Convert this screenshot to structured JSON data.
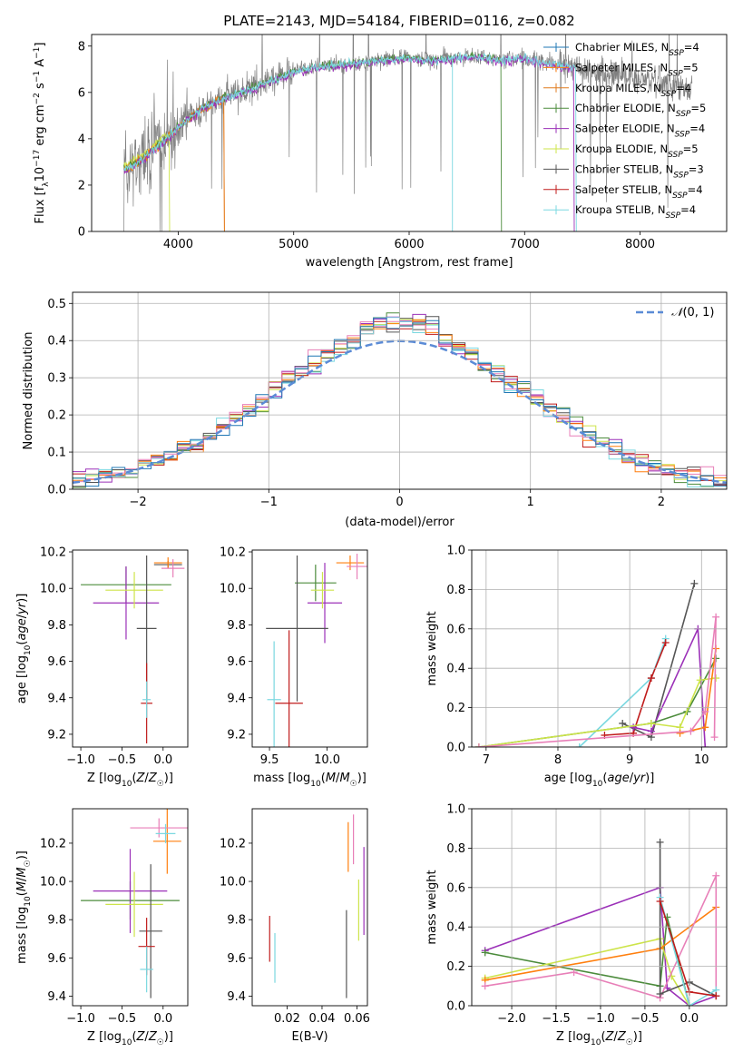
{
  "figure_title": "PLATE=2143, MJD=54184, FIBERID=0116, z=0.082",
  "colors": {
    "Chabrier MILES": "#1f77b4",
    "Salpeter MILES": "#ff7f0e",
    "Kroupa MILES": "#e07b1f",
    "Chabrier ELODIE": "#4b8b3b",
    "Salpeter ELODIE": "#9b30b8",
    "Kroupa ELODIE": "#cde44a",
    "Chabrier STELIB": "#555555",
    "Salpeter STELIB": "#c01b1b",
    "Kroupa STELIB": "#7ad8e0",
    "data": "#808080",
    "normal": "#5b8bd6",
    "pink": "#e87fb8"
  },
  "chart_data": [
    {
      "id": "spectrum",
      "type": "line",
      "title": "PLATE=2143, MJD=54184, FIBERID=0116, z=0.082",
      "xlabel": "wavelength [Angstrom, rest frame]",
      "ylabel": "Flux [f_λ 10^-17 erg cm^-2 s^-1 A^-1]",
      "xlim": [
        3250,
        8750
      ],
      "ylim": [
        0,
        8.5
      ],
      "xticks": [
        4000,
        5000,
        6000,
        7000,
        8000
      ],
      "yticks": [
        0,
        2,
        4,
        6,
        8
      ],
      "grid": false,
      "legend_position": "right",
      "legend": [
        "Chabrier MILES, N_SSP=4",
        "Salpeter MILES, N_SSP=5",
        "Kroupa MILES, N_SSP=4",
        "Chabrier ELODIE, N_SSP=5",
        "Salpeter ELODIE, N_SSP=4",
        "Kroupa ELODIE, N_SSP=5",
        "Chabrier STELIB, N_SSP=3",
        "Salpeter STELIB, N_SSP=4",
        "Kroupa STELIB, N_SSP=4"
      ],
      "continuum": {
        "x": [
          3550,
          3700,
          3850,
          4000,
          4200,
          4400,
          4600,
          4800,
          5000,
          5200,
          5400,
          5600,
          5800,
          6000,
          6200,
          6400,
          6600,
          6800,
          7000,
          7200,
          7400,
          7500
        ],
        "y": [
          2.7,
          3.2,
          3.8,
          4.5,
          5.3,
          5.8,
          6.1,
          6.5,
          6.9,
          7.1,
          7.2,
          7.3,
          7.45,
          7.5,
          7.4,
          7.5,
          7.55,
          7.4,
          7.5,
          7.3,
          7.1,
          7.0
        ]
      },
      "model_end_wavelength": 7450,
      "data_end_wavelength": 8450
    },
    {
      "id": "residuals",
      "type": "line",
      "xlabel": "(data-model)/error",
      "ylabel": "Normed distribution",
      "xlim": [
        -2.5,
        2.5
      ],
      "ylim": [
        0,
        0.53
      ],
      "xticks": [
        -2,
        -1,
        0,
        1,
        2
      ],
      "yticks": [
        0,
        0.1,
        0.2,
        0.3,
        0.4,
        0.5
      ],
      "grid": true,
      "legend_position": "top-right",
      "legend": [
        "N(0,1)"
      ],
      "normal": {
        "mean": 0,
        "sigma": 1
      }
    },
    {
      "id": "age_vs_z",
      "type": "scatter",
      "xlabel": "Z [log10(Z/Z☉)]",
      "ylabel": "age [log10(age/yr)]",
      "xlim": [
        -1.1,
        0.3
      ],
      "ylim": [
        9.13,
        10.21
      ],
      "xticks": [
        -1.0,
        -0.5,
        0.0
      ],
      "yticks": [
        9.2,
        9.4,
        9.6,
        9.8,
        10.0,
        10.2
      ],
      "grid": false,
      "points": [
        {
          "c": "Chabrier ELODIE",
          "x": -0.45,
          "xe": 0.55,
          "y": 10.02,
          "ye": 0.1
        },
        {
          "c": "Salpeter ELODIE",
          "x": -0.45,
          "xe": 0.4,
          "y": 9.92,
          "ye": 0.2
        },
        {
          "c": "Kroupa ELODIE",
          "x": -0.35,
          "xe": 0.35,
          "y": 9.99,
          "ye": 0.1
        },
        {
          "c": "Chabrier STELIB",
          "x": -0.2,
          "xe": 0.12,
          "y": 9.78,
          "ye": 0.4
        },
        {
          "c": "Chabrier STELIB",
          "x": 0.06,
          "xe": 0.17,
          "y": 10.13,
          "ye": 0.02
        },
        {
          "c": "Salpeter STELIB",
          "x": -0.2,
          "xe": 0.07,
          "y": 9.37,
          "ye": 0.22
        },
        {
          "c": "Kroupa STELIB",
          "x": -0.2,
          "xe": 0.05,
          "y": 9.39,
          "ye": 0.1
        },
        {
          "c": "Salpeter MILES",
          "x": 0.06,
          "xe": 0.17,
          "y": 10.14,
          "ye": 0.03
        },
        {
          "c": "pink",
          "x": 0.12,
          "xe": 0.14,
          "y": 10.11,
          "ye": 0.05
        }
      ]
    },
    {
      "id": "age_vs_mass",
      "type": "scatter",
      "xlabel": "mass [log10(M/M☉)]",
      "ylim": [
        9.13,
        10.21
      ],
      "xlim": [
        9.35,
        10.35
      ],
      "xticks": [
        9.5,
        10.0
      ],
      "yticks": [
        9.2,
        9.4,
        9.6,
        9.8,
        10.0,
        10.2
      ],
      "grid": false,
      "points": [
        {
          "c": "Chabrier ELODIE",
          "x": 9.9,
          "xe": 0.18,
          "y": 10.03,
          "ye": 0.1
        },
        {
          "c": "Salpeter ELODIE",
          "x": 9.98,
          "xe": 0.15,
          "y": 9.92,
          "ye": 0.22
        },
        {
          "c": "Kroupa ELODIE",
          "x": 9.96,
          "xe": 0.1,
          "y": 9.99,
          "ye": 0.1
        },
        {
          "c": "Chabrier STELIB",
          "x": 9.74,
          "xe": 0.27,
          "y": 9.78,
          "ye": 0.4
        },
        {
          "c": "Salpeter STELIB",
          "x": 9.67,
          "xe": 0.12,
          "y": 9.37,
          "ye": 0.4
        },
        {
          "c": "Kroupa STELIB",
          "x": 9.54,
          "xe": 0.06,
          "y": 9.39,
          "ye": 0.32
        },
        {
          "c": "Salpeter MILES",
          "x": 10.2,
          "xe": 0.12,
          "y": 10.14,
          "ye": 0.04
        },
        {
          "c": "pink",
          "x": 10.26,
          "xe": 0.09,
          "y": 10.12,
          "ye": 0.07
        }
      ]
    },
    {
      "id": "weight_vs_age",
      "type": "line",
      "xlabel": "age [log10(age/yr)]",
      "ylabel": "mass weight",
      "xlim": [
        6.8,
        10.35
      ],
      "ylim": [
        0,
        1.0
      ],
      "xticks": [
        7,
        8,
        9,
        10
      ],
      "yticks": [
        0.0,
        0.2,
        0.4,
        0.6,
        0.8,
        1.0
      ],
      "grid": true,
      "series": [
        {
          "c": "Kroupa STELIB",
          "x": [
            8.3,
            9.3,
            9.5
          ],
          "y": [
            0.0,
            0.35,
            0.55
          ]
        },
        {
          "c": "Salpeter STELIB",
          "x": [
            8.65,
            9.05,
            9.3,
            9.5
          ],
          "y": [
            0.06,
            0.07,
            0.35,
            0.53
          ]
        },
        {
          "c": "Chabrier STELIB",
          "x": [
            8.9,
            9.3,
            9.9
          ],
          "y": [
            0.12,
            0.05,
            0.83
          ]
        },
        {
          "c": "Salpeter ELODIE",
          "x": [
            9.05,
            9.3,
            9.95,
            10.05
          ],
          "y": [
            0.1,
            0.08,
            0.6,
            0.0
          ]
        },
        {
          "c": "Chabrier ELODIE",
          "x": [
            6.9,
            9.3,
            9.8,
            10.2
          ],
          "y": [
            0.0,
            0.12,
            0.18,
            0.45
          ]
        },
        {
          "c": "Kroupa ELODIE",
          "x": [
            6.9,
            9.3,
            9.7,
            9.98,
            10.2
          ],
          "y": [
            0.0,
            0.12,
            0.1,
            0.34,
            0.35
          ]
        },
        {
          "c": "Salpeter MILES",
          "x": [
            9.7,
            10.05,
            10.2
          ],
          "y": [
            0.07,
            0.1,
            0.5
          ]
        },
        {
          "c": "pink",
          "x": [
            6.9,
            9.85,
            10.05,
            10.2,
            10.18
          ],
          "y": [
            0.0,
            0.08,
            0.18,
            0.66,
            0.05
          ]
        }
      ]
    },
    {
      "id": "mass_vs_z",
      "type": "scatter",
      "xlabel": "Z [log10(Z/Z☉)]",
      "ylabel": "mass [log10(M/M☉)]",
      "xlim": [
        -1.1,
        0.3
      ],
      "ylim": [
        9.35,
        10.38
      ],
      "xticks": [
        -1.0,
        -0.5,
        0.0
      ],
      "yticks": [
        9.4,
        9.6,
        9.8,
        10.0,
        10.2
      ],
      "grid": false,
      "points": [
        {
          "c": "Chabrier ELODIE",
          "x": -0.4,
          "xe": 0.6,
          "y": 9.9,
          "ye": 0.1
        },
        {
          "c": "Salpeter ELODIE",
          "x": -0.4,
          "xe": 0.45,
          "y": 9.95,
          "ye": 0.22
        },
        {
          "c": "Kroupa ELODIE",
          "x": -0.35,
          "xe": 0.35,
          "y": 9.88,
          "ye": 0.17
        },
        {
          "c": "Chabrier STELIB",
          "x": -0.15,
          "xe": 0.14,
          "y": 9.74,
          "ye": 0.35
        },
        {
          "c": "Salpeter STELIB",
          "x": -0.2,
          "xe": 0.1,
          "y": 9.66,
          "ye": 0.15
        },
        {
          "c": "Kroupa STELIB",
          "x": -0.2,
          "xe": 0.08,
          "y": 9.54,
          "ye": 0.12
        },
        {
          "c": "Salpeter MILES",
          "x": 0.05,
          "xe": 0.17,
          "y": 10.21,
          "ye": 0.17
        },
        {
          "c": "pink",
          "x": -0.05,
          "xe": 0.35,
          "y": 10.28,
          "ye": 0.05
        },
        {
          "c": "Kroupa STELIB",
          "x": 0.03,
          "xe": 0.12,
          "y": 10.25,
          "ye": 0.05
        }
      ]
    },
    {
      "id": "mass_vs_ebv",
      "type": "scatter",
      "xlabel": "E(B-V)",
      "xlim": [
        0.0,
        0.066
      ],
      "ylim": [
        9.35,
        10.38
      ],
      "xticks": [
        0.02,
        0.04,
        0.06
      ],
      "yticks": [
        9.4,
        9.6,
        9.8,
        10.0,
        10.2
      ],
      "grid": false,
      "points": [
        {
          "c": "Salpeter STELIB",
          "x": 0.01,
          "xe": 0,
          "y": 9.7,
          "ye": 0.12
        },
        {
          "c": "Kroupa STELIB",
          "x": 0.013,
          "xe": 0,
          "y": 9.6,
          "ye": 0.13
        },
        {
          "c": "Chabrier STELIB",
          "x": 0.054,
          "xe": 0,
          "y": 9.62,
          "ye": 0.23
        },
        {
          "c": "Salpeter MILES",
          "x": 0.055,
          "xe": 0,
          "y": 10.18,
          "ye": 0.13
        },
        {
          "c": "pink",
          "x": 0.058,
          "xe": 0,
          "y": 10.22,
          "ye": 0.13
        },
        {
          "c": "Kroupa ELODIE",
          "x": 0.061,
          "xe": 0,
          "y": 9.85,
          "ye": 0.16
        },
        {
          "c": "Salpeter ELODIE",
          "x": 0.064,
          "xe": 0,
          "y": 9.95,
          "ye": 0.23
        }
      ]
    },
    {
      "id": "weight_vs_z",
      "type": "line",
      "xlabel": "Z [log10(Z/Z☉)]",
      "ylabel": "mass weight",
      "xlim": [
        -2.45,
        0.42
      ],
      "ylim": [
        0,
        1.0
      ],
      "xticks": [
        -2.0,
        -1.5,
        -1.0,
        -0.5,
        0.0
      ],
      "yticks": [
        0.0,
        0.2,
        0.4,
        0.6,
        0.8,
        1.0
      ],
      "grid": true,
      "series": [
        {
          "c": "Salpeter ELODIE",
          "x": [
            -2.3,
            -0.33,
            -0.25,
            0.0,
            0.3
          ],
          "y": [
            0.28,
            0.6,
            0.09,
            0.0,
            0.05
          ]
        },
        {
          "c": "Chabrier ELODIE",
          "x": [
            -2.3,
            -0.33,
            -0.25,
            0.0
          ],
          "y": [
            0.27,
            0.1,
            0.45,
            0.0
          ]
        },
        {
          "c": "Kroupa ELODIE",
          "x": [
            -2.3,
            -0.33,
            -0.2,
            0.0
          ],
          "y": [
            0.14,
            0.34,
            0.15,
            0.0
          ]
        },
        {
          "c": "Salpeter MILES",
          "x": [
            -2.3,
            -0.33,
            0.3
          ],
          "y": [
            0.13,
            0.29,
            0.5
          ]
        },
        {
          "c": "pink",
          "x": [
            -2.3,
            -1.3,
            -0.33,
            0.3,
            0.3
          ],
          "y": [
            0.1,
            0.17,
            0.04,
            0.66,
            0.05
          ]
        },
        {
          "c": "Chabrier STELIB",
          "x": [
            -0.33,
            -0.33,
            0.0,
            0.3
          ],
          "y": [
            0.83,
            0.06,
            0.12,
            0.05
          ]
        },
        {
          "c": "Kroupa STELIB",
          "x": [
            -0.33,
            0.0,
            0.3
          ],
          "y": [
            0.55,
            0.0,
            0.08
          ]
        },
        {
          "c": "Salpeter STELIB",
          "x": [
            -0.33,
            0.0,
            0.3
          ],
          "y": [
            0.53,
            0.07,
            0.05
          ]
        }
      ]
    }
  ]
}
